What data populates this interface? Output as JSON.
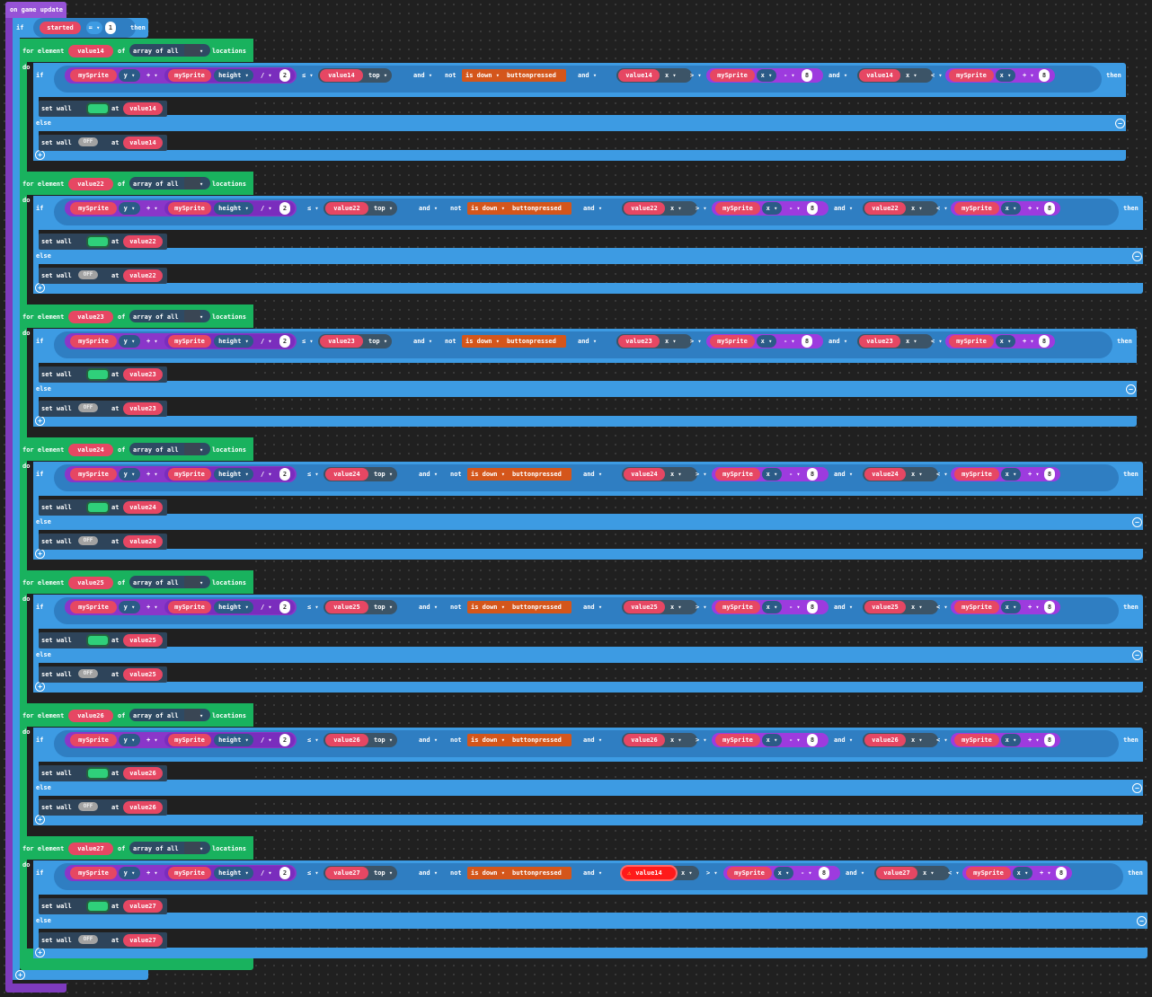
{
  "event": {
    "label": "on game update"
  },
  "outer_if": {
    "if_label": "if",
    "var": "started",
    "op": "= ▾",
    "value": "1",
    "then_label": "then"
  },
  "for_labels": {
    "for_element": "for element",
    "of": "of",
    "array_of_all": "array of all",
    "locations": "locations",
    "do": "do"
  },
  "if_labels": {
    "if": "if",
    "then": "then",
    "else": "else",
    "and": "and ▾",
    "not": "not"
  },
  "cond": {
    "sprite": "mySprite",
    "y": "y ▾",
    "plus": "+ ▾",
    "height": "height ▾",
    "div": "/ ▾",
    "two": "2",
    "le": "≤ ▾",
    "top": "top ▾",
    "isdown": "is down ▾",
    "button": "buttonpressed",
    "x": "x ▾",
    "gt": "> ▾",
    "lt": "< ▾",
    "minus": "- ▾",
    "eight": "8"
  },
  "set_wall": {
    "label": "set wall",
    "at": "at",
    "on": "ON",
    "off": "OFF"
  },
  "icons": {
    "add": "plus-circle-icon",
    "remove": "minus-circle-icon",
    "tile": "tile-image-icon",
    "warning": "warning-icon"
  },
  "groups": [
    {
      "var": "value14",
      "first_x_var": "value14",
      "warn": false
    },
    {
      "var": "value22",
      "first_x_var": "value22",
      "warn": false
    },
    {
      "var": "value23",
      "first_x_var": "value23",
      "warn": false
    },
    {
      "var": "value24",
      "first_x_var": "value24",
      "warn": false
    },
    {
      "var": "value25",
      "first_x_var": "value25",
      "warn": false
    },
    {
      "var": "value26",
      "first_x_var": "value26",
      "warn": false
    },
    {
      "var": "value27",
      "first_x_var": "value14",
      "warn": true
    }
  ],
  "colors": {
    "event": "#7e3bbd",
    "control": "#3d9be3",
    "loops": "#19b25e",
    "variables": "#e64763",
    "sprites": "#9d3bde",
    "controller": "#d4561b"
  }
}
